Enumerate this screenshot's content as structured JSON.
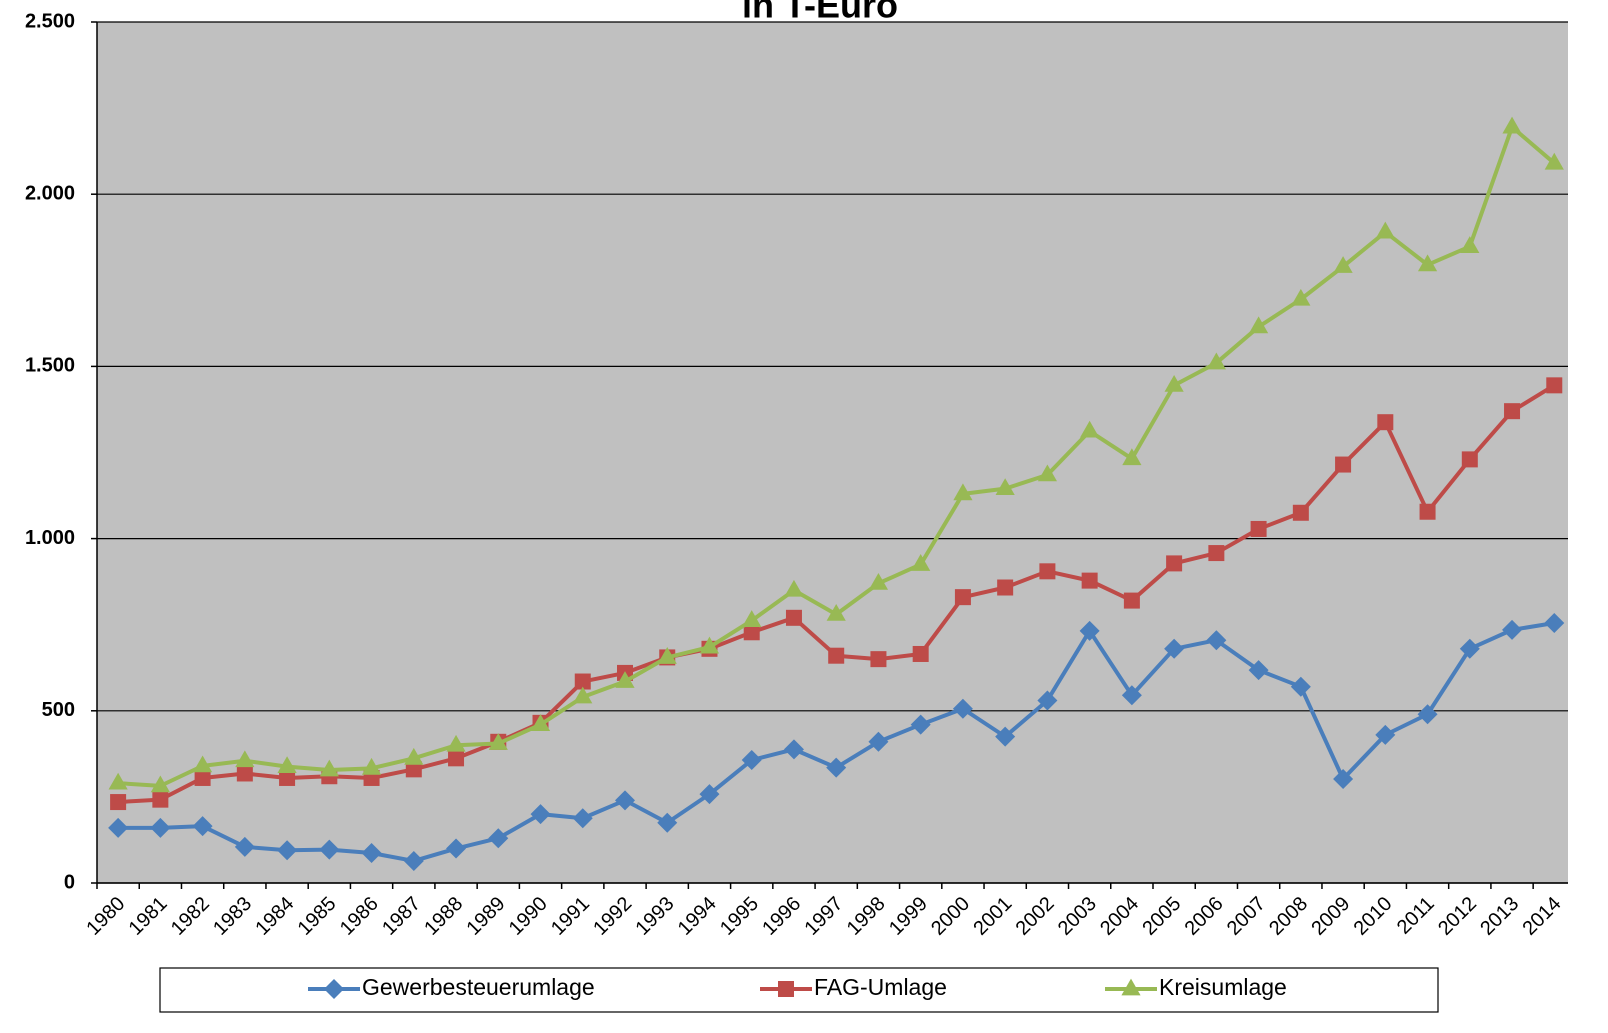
{
  "chart_data": {
    "type": "line",
    "title": "in T-Euro",
    "categories": [
      "1980",
      "1981",
      "1982",
      "1983",
      "1984",
      "1985",
      "1986",
      "1987",
      "1988",
      "1989",
      "1990",
      "1991",
      "1992",
      "1993",
      "1994",
      "1995",
      "1996",
      "1997",
      "1998",
      "1999",
      "2000",
      "2001",
      "2002",
      "2003",
      "2004",
      "2005",
      "2006",
      "2007",
      "2008",
      "2009",
      "2010",
      "2011",
      "2012",
      "2013",
      "2014"
    ],
    "series": [
      {
        "name": "Gewerbesteuerumlage",
        "color": "#4a7ebb",
        "marker": "diamond",
        "values": [
          160,
          160,
          165,
          105,
          95,
          97,
          87,
          64,
          100,
          130,
          200,
          188,
          240,
          175,
          258,
          357,
          388,
          335,
          410,
          460,
          506,
          425,
          530,
          732,
          545,
          680,
          705,
          618,
          570,
          302,
          430,
          490,
          680,
          735,
          755
        ]
      },
      {
        "name": "FAG-Umlage",
        "color": "#be4b48",
        "marker": "square",
        "values": [
          235,
          242,
          305,
          318,
          305,
          310,
          305,
          330,
          362,
          410,
          465,
          585,
          610,
          655,
          680,
          728,
          770,
          660,
          650,
          665,
          830,
          858,
          905,
          878,
          820,
          928,
          958,
          1028,
          1075,
          1215,
          1338,
          1078,
          1230,
          1370,
          1445
        ]
      },
      {
        "name": "Kreisumlage",
        "color": "#98b954",
        "marker": "triangle",
        "values": [
          290,
          282,
          340,
          355,
          338,
          328,
          333,
          362,
          400,
          405,
          460,
          540,
          585,
          655,
          685,
          762,
          850,
          780,
          870,
          925,
          1130,
          1145,
          1185,
          1312,
          1232,
          1445,
          1510,
          1615,
          1695,
          1790,
          1890,
          1795,
          1848,
          2195,
          2090
        ]
      }
    ],
    "ylim": [
      0,
      2500
    ],
    "yticks": [
      0,
      500,
      {
        "value": 1000,
        "label": "1.000"
      },
      {
        "value": 1500,
        "label": "1.500"
      },
      {
        "value": 2000,
        "label": "2.000"
      },
      {
        "value": 2500,
        "label": "2.500"
      }
    ],
    "grid": true,
    "plot_background": "#c0c0c0",
    "legend": "bottom"
  }
}
